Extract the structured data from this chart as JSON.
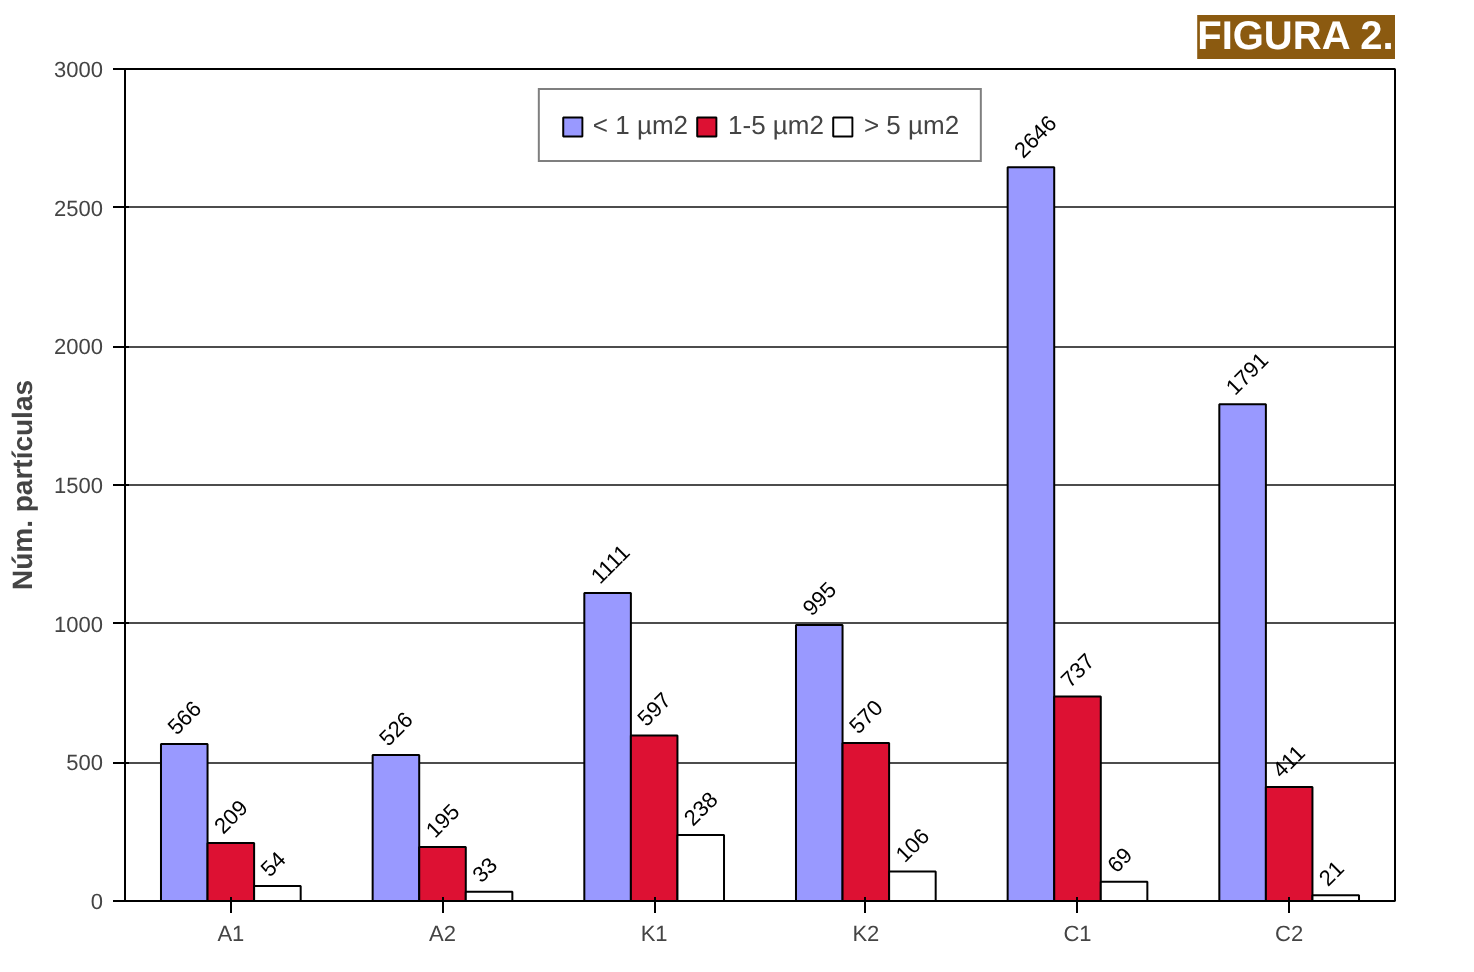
{
  "chart_data": {
    "type": "bar",
    "title": "FIGURA 2.",
    "ylabel": "Núm. partículas",
    "categories": [
      "A1",
      "A2",
      "K1",
      "K2",
      "C1",
      "C2"
    ],
    "series": [
      {
        "name": "< 1 µm2",
        "color": "#9999ff",
        "values": [
          566,
          526,
          1111,
          995,
          2646,
          1791
        ]
      },
      {
        "name": "1-5 µm2",
        "color": "#dd1133",
        "values": [
          209,
          195,
          597,
          570,
          737,
          411
        ]
      },
      {
        "name": "> 5 µm2",
        "color": "#ffffff",
        "values": [
          54,
          33,
          238,
          106,
          69,
          21
        ]
      }
    ],
    "ylim": [
      0,
      3000
    ],
    "yticks": [
      0,
      500,
      1000,
      1500,
      2000,
      2500,
      3000
    ],
    "grid": "y",
    "legend": "top",
    "data_labels": true
  }
}
